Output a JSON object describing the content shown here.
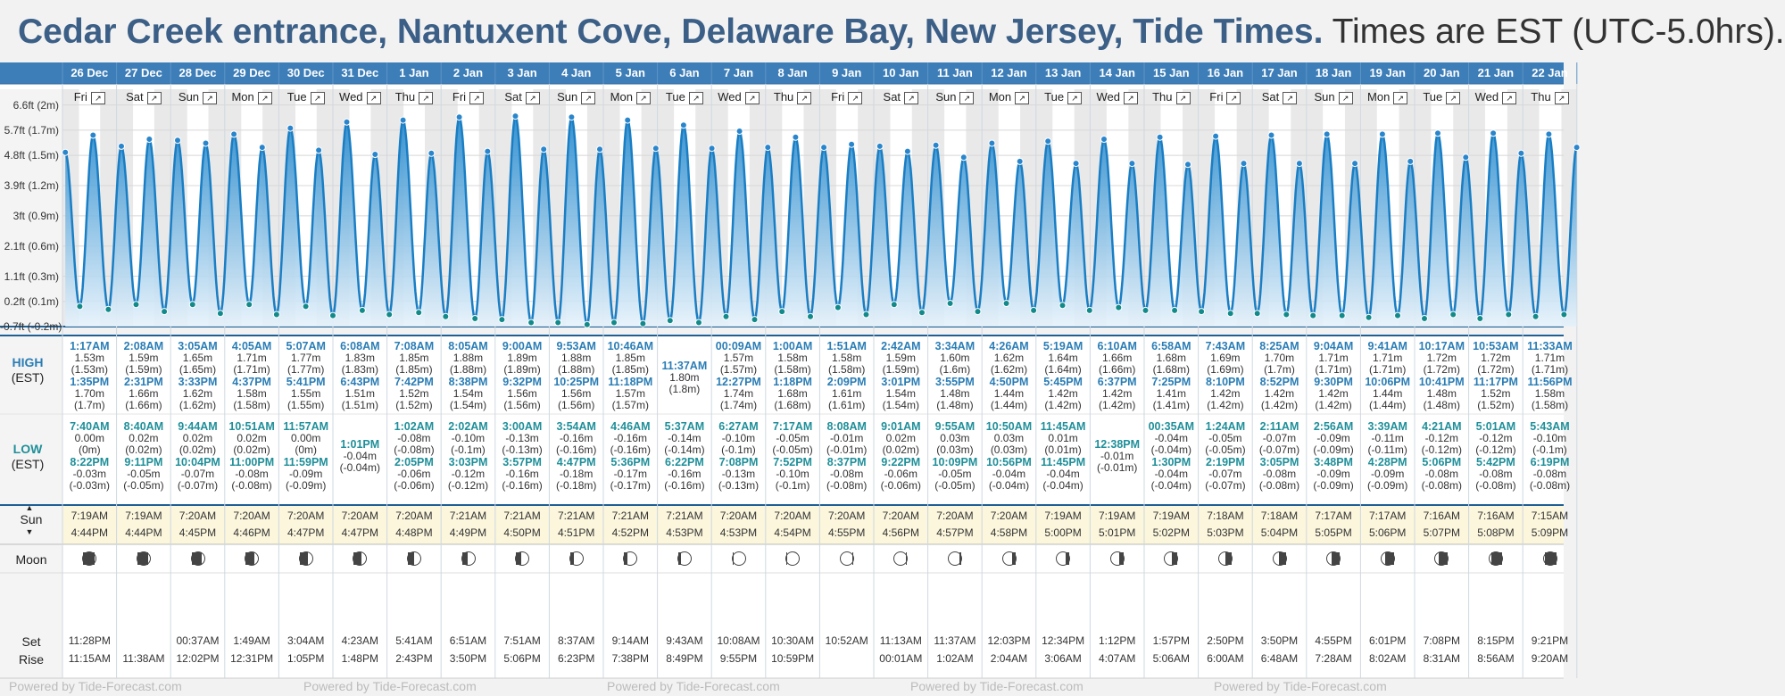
{
  "header": {
    "title_bold": "Cedar Creek entrance, Nantuxent Cove, Delaware Bay, New Jersey, Tide Times.",
    "title_rest": " Times are EST (UTC-5.0hrs)."
  },
  "labels": {
    "high": "HIGH",
    "low": "LOW",
    "est": "(EST)",
    "sun": "Sun",
    "moon": "Moon",
    "set": "Set",
    "rise": "Rise",
    "expand_icon": "expand-icon",
    "watermark": "Powered by Tide-Forecast.com"
  },
  "colors": {
    "header_blue": "#3e7eb8",
    "tide_line": "#1a7ec4",
    "tide_fill_top": "#1f86cc",
    "tide_fill_bottom": "#e6f2fb",
    "high_time": "#2a7db5",
    "low_time": "#1f8f99",
    "title": "#3b5f86"
  },
  "days": [
    {
      "date": "26 Dec",
      "dow": "Fri",
      "high": [
        {
          "time": "1:17AM",
          "m": "1.53m",
          "ft": "(1.53m)"
        },
        {
          "time": "1:35PM",
          "m": "1.70m",
          "ft": "(1.7m)"
        }
      ],
      "low": [
        {
          "time": "7:40AM",
          "m": "0.00m",
          "ft": "(0m)"
        },
        {
          "time": "8:22PM",
          "m": "-0.03m",
          "ft": "(-0.03m)"
        }
      ],
      "sun": [
        "7:19AM",
        "4:44PM"
      ],
      "moon": [
        "11:28PM",
        "11:15AM"
      ]
    },
    {
      "date": "27 Dec",
      "dow": "Sat",
      "high": [
        {
          "time": "2:08AM",
          "m": "1.59m",
          "ft": "(1.59m)"
        },
        {
          "time": "2:31PM",
          "m": "1.66m",
          "ft": "(1.66m)"
        }
      ],
      "low": [
        {
          "time": "8:40AM",
          "m": "0.02m",
          "ft": "(0.02m)"
        },
        {
          "time": "9:11PM",
          "m": "-0.05m",
          "ft": "(-0.05m)"
        }
      ],
      "sun": [
        "7:19AM",
        "4:44PM"
      ],
      "moon": [
        "",
        "11:38AM"
      ]
    },
    {
      "date": "28 Dec",
      "dow": "Sun",
      "high": [
        {
          "time": "3:05AM",
          "m": "1.65m",
          "ft": "(1.65m)"
        },
        {
          "time": "3:33PM",
          "m": "1.62m",
          "ft": "(1.62m)"
        }
      ],
      "low": [
        {
          "time": "9:44AM",
          "m": "0.02m",
          "ft": "(0.02m)"
        },
        {
          "time": "10:04PM",
          "m": "-0.07m",
          "ft": "(-0.07m)"
        }
      ],
      "sun": [
        "7:20AM",
        "4:45PM"
      ],
      "moon": [
        "00:37AM",
        "12:02PM"
      ]
    },
    {
      "date": "29 Dec",
      "dow": "Mon",
      "high": [
        {
          "time": "4:05AM",
          "m": "1.71m",
          "ft": "(1.71m)"
        },
        {
          "time": "4:37PM",
          "m": "1.58m",
          "ft": "(1.58m)"
        }
      ],
      "low": [
        {
          "time": "10:51AM",
          "m": "0.02m",
          "ft": "(0.02m)"
        },
        {
          "time": "11:00PM",
          "m": "-0.08m",
          "ft": "(-0.08m)"
        }
      ],
      "sun": [
        "7:20AM",
        "4:46PM"
      ],
      "moon": [
        "1:49AM",
        "12:31PM"
      ]
    },
    {
      "date": "30 Dec",
      "dow": "Tue",
      "high": [
        {
          "time": "5:07AM",
          "m": "1.77m",
          "ft": "(1.77m)"
        },
        {
          "time": "5:41PM",
          "m": "1.55m",
          "ft": "(1.55m)"
        }
      ],
      "low": [
        {
          "time": "11:57AM",
          "m": "0.00m",
          "ft": "(0m)"
        },
        {
          "time": "11:59PM",
          "m": "-0.09m",
          "ft": "(-0.09m)"
        }
      ],
      "sun": [
        "7:20AM",
        "4:47PM"
      ],
      "moon": [
        "3:04AM",
        "1:05PM"
      ]
    },
    {
      "date": "31 Dec",
      "dow": "Wed",
      "high": [
        {
          "time": "6:08AM",
          "m": "1.83m",
          "ft": "(1.83m)"
        },
        {
          "time": "6:43PM",
          "m": "1.51m",
          "ft": "(1.51m)"
        }
      ],
      "low": [
        {
          "time": "1:01PM",
          "m": "-0.04m",
          "ft": "(-0.04m)"
        }
      ],
      "sun": [
        "7:20AM",
        "4:47PM"
      ],
      "moon": [
        "4:23AM",
        "1:48PM"
      ]
    },
    {
      "date": "1 Jan",
      "dow": "Thu",
      "high": [
        {
          "time": "7:08AM",
          "m": "1.85m",
          "ft": "(1.85m)"
        },
        {
          "time": "7:42PM",
          "m": "1.52m",
          "ft": "(1.52m)"
        }
      ],
      "low": [
        {
          "time": "1:02AM",
          "m": "-0.08m",
          "ft": "(-0.08m)"
        },
        {
          "time": "2:05PM",
          "m": "-0.06m",
          "ft": "(-0.06m)"
        }
      ],
      "sun": [
        "7:20AM",
        "4:48PM"
      ],
      "moon": [
        "5:41AM",
        "2:43PM"
      ]
    },
    {
      "date": "2 Jan",
      "dow": "Fri",
      "high": [
        {
          "time": "8:05AM",
          "m": "1.88m",
          "ft": "(1.88m)"
        },
        {
          "time": "8:38PM",
          "m": "1.54m",
          "ft": "(1.54m)"
        }
      ],
      "low": [
        {
          "time": "2:02AM",
          "m": "-0.10m",
          "ft": "(-0.1m)"
        },
        {
          "time": "3:03PM",
          "m": "-0.12m",
          "ft": "(-0.12m)"
        }
      ],
      "sun": [
        "7:21AM",
        "4:49PM"
      ],
      "moon": [
        "6:51AM",
        "3:50PM"
      ]
    },
    {
      "date": "3 Jan",
      "dow": "Sat",
      "high": [
        {
          "time": "9:00AM",
          "m": "1.89m",
          "ft": "(1.89m)"
        },
        {
          "time": "9:32PM",
          "m": "1.56m",
          "ft": "(1.56m)"
        }
      ],
      "low": [
        {
          "time": "3:00AM",
          "m": "-0.13m",
          "ft": "(-0.13m)"
        },
        {
          "time": "3:57PM",
          "m": "-0.16m",
          "ft": "(-0.16m)"
        }
      ],
      "sun": [
        "7:21AM",
        "4:50PM"
      ],
      "moon": [
        "7:51AM",
        "5:06PM"
      ]
    },
    {
      "date": "4 Jan",
      "dow": "Sun",
      "high": [
        {
          "time": "9:53AM",
          "m": "1.88m",
          "ft": "(1.88m)"
        },
        {
          "time": "10:25PM",
          "m": "1.56m",
          "ft": "(1.56m)"
        }
      ],
      "low": [
        {
          "time": "3:54AM",
          "m": "-0.16m",
          "ft": "(-0.16m)"
        },
        {
          "time": "4:47PM",
          "m": "-0.18m",
          "ft": "(-0.18m)"
        }
      ],
      "sun": [
        "7:21AM",
        "4:51PM"
      ],
      "moon": [
        "8:37AM",
        "6:23PM"
      ]
    },
    {
      "date": "5 Jan",
      "dow": "Mon",
      "high": [
        {
          "time": "10:46AM",
          "m": "1.85m",
          "ft": "(1.85m)"
        },
        {
          "time": "11:18PM",
          "m": "1.57m",
          "ft": "(1.57m)"
        }
      ],
      "low": [
        {
          "time": "4:46AM",
          "m": "-0.16m",
          "ft": "(-0.16m)"
        },
        {
          "time": "5:36PM",
          "m": "-0.17m",
          "ft": "(-0.17m)"
        }
      ],
      "sun": [
        "7:21AM",
        "4:52PM"
      ],
      "moon": [
        "9:14AM",
        "7:38PM"
      ]
    },
    {
      "date": "6 Jan",
      "dow": "Tue",
      "high": [
        {
          "time": "11:37AM",
          "m": "1.80m",
          "ft": "(1.8m)"
        }
      ],
      "low": [
        {
          "time": "5:37AM",
          "m": "-0.14m",
          "ft": "(-0.14m)"
        },
        {
          "time": "6:22PM",
          "m": "-0.16m",
          "ft": "(-0.16m)"
        }
      ],
      "sun": [
        "7:21AM",
        "4:53PM"
      ],
      "moon": [
        "9:43AM",
        "8:49PM"
      ]
    },
    {
      "date": "7 Jan",
      "dow": "Wed",
      "high": [
        {
          "time": "00:09AM",
          "m": "1.57m",
          "ft": "(1.57m)"
        },
        {
          "time": "12:27PM",
          "m": "1.74m",
          "ft": "(1.74m)"
        }
      ],
      "low": [
        {
          "time": "6:27AM",
          "m": "-0.10m",
          "ft": "(-0.1m)"
        },
        {
          "time": "7:08PM",
          "m": "-0.13m",
          "ft": "(-0.13m)"
        }
      ],
      "sun": [
        "7:20AM",
        "4:53PM"
      ],
      "moon": [
        "10:08AM",
        "9:55PM"
      ]
    },
    {
      "date": "8 Jan",
      "dow": "Thu",
      "high": [
        {
          "time": "1:00AM",
          "m": "1.58m",
          "ft": "(1.58m)"
        },
        {
          "time": "1:18PM",
          "m": "1.68m",
          "ft": "(1.68m)"
        }
      ],
      "low": [
        {
          "time": "7:17AM",
          "m": "-0.05m",
          "ft": "(-0.05m)"
        },
        {
          "time": "7:52PM",
          "m": "-0.10m",
          "ft": "(-0.1m)"
        }
      ],
      "sun": [
        "7:20AM",
        "4:54PM"
      ],
      "moon": [
        "10:30AM",
        "10:59PM"
      ]
    },
    {
      "date": "9 Jan",
      "dow": "Fri",
      "high": [
        {
          "time": "1:51AM",
          "m": "1.58m",
          "ft": "(1.58m)"
        },
        {
          "time": "2:09PM",
          "m": "1.61m",
          "ft": "(1.61m)"
        }
      ],
      "low": [
        {
          "time": "8:08AM",
          "m": "-0.01m",
          "ft": "(-0.01m)"
        },
        {
          "time": "8:37PM",
          "m": "-0.08m",
          "ft": "(-0.08m)"
        }
      ],
      "sun": [
        "7:20AM",
        "4:55PM"
      ],
      "moon": [
        "10:52AM",
        ""
      ]
    },
    {
      "date": "10 Jan",
      "dow": "Sat",
      "high": [
        {
          "time": "2:42AM",
          "m": "1.59m",
          "ft": "(1.59m)"
        },
        {
          "time": "3:01PM",
          "m": "1.54m",
          "ft": "(1.54m)"
        }
      ],
      "low": [
        {
          "time": "9:01AM",
          "m": "0.02m",
          "ft": "(0.02m)"
        },
        {
          "time": "9:22PM",
          "m": "-0.06m",
          "ft": "(-0.06m)"
        }
      ],
      "sun": [
        "7:20AM",
        "4:56PM"
      ],
      "moon": [
        "11:13AM",
        "00:01AM"
      ]
    },
    {
      "date": "11 Jan",
      "dow": "Sun",
      "high": [
        {
          "time": "3:34AM",
          "m": "1.60m",
          "ft": "(1.6m)"
        },
        {
          "time": "3:55PM",
          "m": "1.48m",
          "ft": "(1.48m)"
        }
      ],
      "low": [
        {
          "time": "9:55AM",
          "m": "0.03m",
          "ft": "(0.03m)"
        },
        {
          "time": "10:09PM",
          "m": "-0.05m",
          "ft": "(-0.05m)"
        }
      ],
      "sun": [
        "7:20AM",
        "4:57PM"
      ],
      "moon": [
        "11:37AM",
        "1:02AM"
      ]
    },
    {
      "date": "12 Jan",
      "dow": "Mon",
      "high": [
        {
          "time": "4:26AM",
          "m": "1.62m",
          "ft": "(1.62m)"
        },
        {
          "time": "4:50PM",
          "m": "1.44m",
          "ft": "(1.44m)"
        }
      ],
      "low": [
        {
          "time": "10:50AM",
          "m": "0.03m",
          "ft": "(0.03m)"
        },
        {
          "time": "10:56PM",
          "m": "-0.04m",
          "ft": "(-0.04m)"
        }
      ],
      "sun": [
        "7:20AM",
        "4:58PM"
      ],
      "moon": [
        "12:03PM",
        "2:04AM"
      ]
    },
    {
      "date": "13 Jan",
      "dow": "Tue",
      "high": [
        {
          "time": "5:19AM",
          "m": "1.64m",
          "ft": "(1.64m)"
        },
        {
          "time": "5:45PM",
          "m": "1.42m",
          "ft": "(1.42m)"
        }
      ],
      "low": [
        {
          "time": "11:45AM",
          "m": "0.01m",
          "ft": "(0.01m)"
        },
        {
          "time": "11:45PM",
          "m": "-0.04m",
          "ft": "(-0.04m)"
        }
      ],
      "sun": [
        "7:19AM",
        "5:00PM"
      ],
      "moon": [
        "12:34PM",
        "3:06AM"
      ]
    },
    {
      "date": "14 Jan",
      "dow": "Wed",
      "high": [
        {
          "time": "6:10AM",
          "m": "1.66m",
          "ft": "(1.66m)"
        },
        {
          "time": "6:37PM",
          "m": "1.42m",
          "ft": "(1.42m)"
        }
      ],
      "low": [
        {
          "time": "12:38PM",
          "m": "-0.01m",
          "ft": "(-0.01m)"
        }
      ],
      "sun": [
        "7:19AM",
        "5:01PM"
      ],
      "moon": [
        "1:12PM",
        "4:07AM"
      ]
    },
    {
      "date": "15 Jan",
      "dow": "Thu",
      "high": [
        {
          "time": "6:58AM",
          "m": "1.68m",
          "ft": "(1.68m)"
        },
        {
          "time": "7:25PM",
          "m": "1.41m",
          "ft": "(1.41m)"
        }
      ],
      "low": [
        {
          "time": "00:35AM",
          "m": "-0.04m",
          "ft": "(-0.04m)"
        },
        {
          "time": "1:30PM",
          "m": "-0.04m",
          "ft": "(-0.04m)"
        }
      ],
      "sun": [
        "7:19AM",
        "5:02PM"
      ],
      "moon": [
        "1:57PM",
        "5:06AM"
      ]
    },
    {
      "date": "16 Jan",
      "dow": "Fri",
      "high": [
        {
          "time": "7:43AM",
          "m": "1.69m",
          "ft": "(1.69m)"
        },
        {
          "time": "8:10PM",
          "m": "1.42m",
          "ft": "(1.42m)"
        }
      ],
      "low": [
        {
          "time": "1:24AM",
          "m": "-0.05m",
          "ft": "(-0.05m)"
        },
        {
          "time": "2:19PM",
          "m": "-0.07m",
          "ft": "(-0.07m)"
        }
      ],
      "sun": [
        "7:18AM",
        "5:03PM"
      ],
      "moon": [
        "2:50PM",
        "6:00AM"
      ]
    },
    {
      "date": "17 Jan",
      "dow": "Sat",
      "high": [
        {
          "time": "8:25AM",
          "m": "1.70m",
          "ft": "(1.7m)"
        },
        {
          "time": "8:52PM",
          "m": "1.42m",
          "ft": "(1.42m)"
        }
      ],
      "low": [
        {
          "time": "2:11AM",
          "m": "-0.07m",
          "ft": "(-0.07m)"
        },
        {
          "time": "3:05PM",
          "m": "-0.08m",
          "ft": "(-0.08m)"
        }
      ],
      "sun": [
        "7:18AM",
        "5:04PM"
      ],
      "moon": [
        "3:50PM",
        "6:48AM"
      ]
    },
    {
      "date": "18 Jan",
      "dow": "Sun",
      "high": [
        {
          "time": "9:04AM",
          "m": "1.71m",
          "ft": "(1.71m)"
        },
        {
          "time": "9:30PM",
          "m": "1.42m",
          "ft": "(1.42m)"
        }
      ],
      "low": [
        {
          "time": "2:56AM",
          "m": "-0.09m",
          "ft": "(-0.09m)"
        },
        {
          "time": "3:48PM",
          "m": "-0.09m",
          "ft": "(-0.09m)"
        }
      ],
      "sun": [
        "7:17AM",
        "5:05PM"
      ],
      "moon": [
        "4:55PM",
        "7:28AM"
      ]
    },
    {
      "date": "19 Jan",
      "dow": "Mon",
      "high": [
        {
          "time": "9:41AM",
          "m": "1.71m",
          "ft": "(1.71m)"
        },
        {
          "time": "10:06PM",
          "m": "1.44m",
          "ft": "(1.44m)"
        }
      ],
      "low": [
        {
          "time": "3:39AM",
          "m": "-0.11m",
          "ft": "(-0.11m)"
        },
        {
          "time": "4:28PM",
          "m": "-0.09m",
          "ft": "(-0.09m)"
        }
      ],
      "sun": [
        "7:17AM",
        "5:06PM"
      ],
      "moon": [
        "6:01PM",
        "8:02AM"
      ]
    },
    {
      "date": "20 Jan",
      "dow": "Tue",
      "high": [
        {
          "time": "10:17AM",
          "m": "1.72m",
          "ft": "(1.72m)"
        },
        {
          "time": "10:41PM",
          "m": "1.48m",
          "ft": "(1.48m)"
        }
      ],
      "low": [
        {
          "time": "4:21AM",
          "m": "-0.12m",
          "ft": "(-0.12m)"
        },
        {
          "time": "5:06PM",
          "m": "-0.08m",
          "ft": "(-0.08m)"
        }
      ],
      "sun": [
        "7:16AM",
        "5:07PM"
      ],
      "moon": [
        "7:08PM",
        "8:31AM"
      ]
    },
    {
      "date": "21 Jan",
      "dow": "Wed",
      "high": [
        {
          "time": "10:53AM",
          "m": "1.72m",
          "ft": "(1.72m)"
        },
        {
          "time": "11:17PM",
          "m": "1.52m",
          "ft": "(1.52m)"
        }
      ],
      "low": [
        {
          "time": "5:01AM",
          "m": "-0.12m",
          "ft": "(-0.12m)"
        },
        {
          "time": "5:42PM",
          "m": "-0.08m",
          "ft": "(-0.08m)"
        }
      ],
      "sun": [
        "7:16AM",
        "5:08PM"
      ],
      "moon": [
        "8:15PM",
        "8:56AM"
      ]
    },
    {
      "date": "22 Jan",
      "dow": "Thu",
      "high": [
        {
          "time": "11:33AM",
          "m": "1.71m",
          "ft": "(1.71m)"
        },
        {
          "time": "11:56PM",
          "m": "1.58m",
          "ft": "(1.58m)"
        }
      ],
      "low": [
        {
          "time": "5:43AM",
          "m": "-0.10m",
          "ft": "(-0.1m)"
        },
        {
          "time": "6:19PM",
          "m": "-0.08m",
          "ft": "(-0.08m)"
        }
      ],
      "sun": [
        "7:15AM",
        "5:09PM"
      ],
      "moon": [
        "9:21PM",
        "9:20AM"
      ]
    }
  ],
  "chart_data": {
    "type": "area",
    "ylabel": "",
    "yticks": [
      "6.6ft (2m)",
      "5.7ft (1.7m)",
      "4.8ft (1.5m)",
      "3.9ft (1.2m)",
      "3ft (0.9m)",
      "2.1ft (0.6m)",
      "1.1ft (0.3m)",
      "0.2ft (0.1m)",
      "-0.7ft (-0.2m)"
    ],
    "ytick_values_m": [
      2.0,
      1.75,
      1.5,
      1.2,
      0.9,
      0.6,
      0.3,
      0.05,
      -0.2
    ],
    "ylim": [
      -0.2,
      2.05
    ],
    "grid": true,
    "series": [
      {
        "name": "",
        "source": "days[].high and days[].low (time, height in m)"
      }
    ]
  }
}
